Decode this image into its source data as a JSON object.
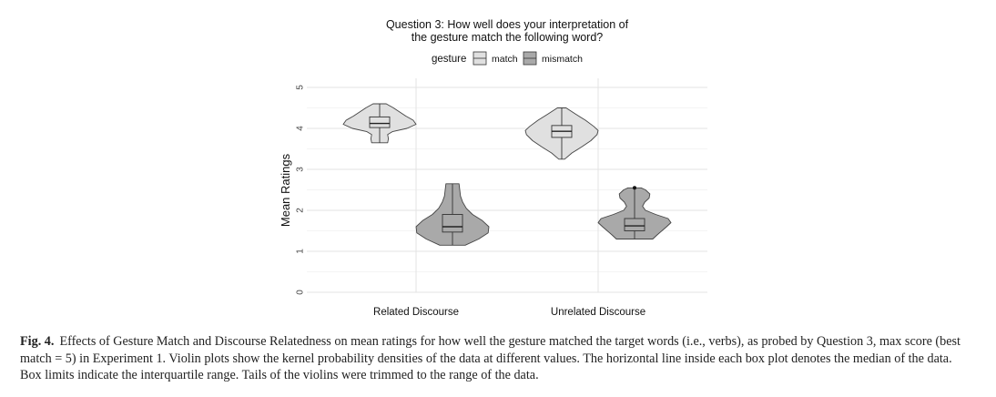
{
  "chart_data": {
    "type": "violin",
    "title_lines": [
      "Question 3: How well does your interpretation of",
      "the gesture match the following word?"
    ],
    "legend": {
      "title": "gesture",
      "position": "top",
      "entries": [
        {
          "label": "match",
          "color": "#e0e0e0"
        },
        {
          "label": "mismatch",
          "color": "#a9a9a9"
        }
      ]
    },
    "xlabel": "",
    "ylabel": "Mean Ratings",
    "categories": [
      "Related Discourse",
      "Unrelated Discourse"
    ],
    "ylim": [
      0,
      5
    ],
    "yticks": [
      "0",
      "1",
      "2",
      "3",
      "4",
      "5"
    ],
    "grid": true,
    "series": [
      {
        "name": "match",
        "color": "#e0e0e0",
        "groups": [
          {
            "category": "Related Discourse",
            "min": 3.65,
            "q1": 4.02,
            "median": 4.12,
            "q3": 4.28,
            "max": 4.6,
            "density": [
              [
                3.65,
                0.22
              ],
              [
                3.75,
                0.24
              ],
              [
                3.85,
                0.22
              ],
              [
                3.92,
                0.35
              ],
              [
                4.0,
                0.75
              ],
              [
                4.1,
                1.0
              ],
              [
                4.2,
                0.92
              ],
              [
                4.3,
                0.72
              ],
              [
                4.4,
                0.55
              ],
              [
                4.5,
                0.38
              ],
              [
                4.6,
                0.18
              ]
            ]
          },
          {
            "category": "Unrelated Discourse",
            "min": 3.25,
            "q1": 3.78,
            "median": 3.93,
            "q3": 4.07,
            "max": 4.5,
            "density": [
              [
                3.25,
                0.08
              ],
              [
                3.4,
                0.28
              ],
              [
                3.55,
                0.55
              ],
              [
                3.7,
                0.8
              ],
              [
                3.85,
                0.97
              ],
              [
                3.95,
                1.0
              ],
              [
                4.05,
                0.88
              ],
              [
                4.2,
                0.65
              ],
              [
                4.35,
                0.38
              ],
              [
                4.5,
                0.12
              ]
            ]
          }
        ]
      },
      {
        "name": "mismatch",
        "color": "#a9a9a9",
        "groups": [
          {
            "category": "Related Discourse",
            "min": 1.15,
            "q1": 1.47,
            "median": 1.6,
            "q3": 1.9,
            "max": 2.65,
            "density": [
              [
                1.15,
                0.35
              ],
              [
                1.3,
                0.72
              ],
              [
                1.45,
                0.98
              ],
              [
                1.6,
                1.0
              ],
              [
                1.75,
                0.82
              ],
              [
                1.9,
                0.55
              ],
              [
                2.05,
                0.38
              ],
              [
                2.2,
                0.28
              ],
              [
                2.35,
                0.22
              ],
              [
                2.5,
                0.2
              ],
              [
                2.65,
                0.18
              ]
            ]
          },
          {
            "category": "Unrelated Discourse",
            "min": 1.3,
            "q1": 1.5,
            "median": 1.62,
            "q3": 1.8,
            "max": 2.55,
            "outlier": 2.55,
            "density": [
              [
                1.3,
                0.5
              ],
              [
                1.4,
                0.62
              ],
              [
                1.5,
                0.75
              ],
              [
                1.6,
                0.88
              ],
              [
                1.7,
                1.0
              ],
              [
                1.8,
                0.92
              ],
              [
                1.9,
                0.58
              ],
              [
                2.0,
                0.3
              ],
              [
                2.1,
                0.22
              ],
              [
                2.2,
                0.28
              ],
              [
                2.3,
                0.4
              ],
              [
                2.4,
                0.42
              ],
              [
                2.5,
                0.3
              ],
              [
                2.55,
                0.18
              ]
            ]
          }
        ]
      }
    ]
  },
  "caption": {
    "label": "Fig. 4.",
    "text": "Effects of Gesture Match and Discourse Relatedness on mean ratings for how well the gesture matched the target words (i.e., verbs), as probed by Question 3, max score (best match = 5) in Experiment 1. Violin plots show the kernel probability densities of the data at different values. The horizontal line inside each box plot denotes the median of the data. Box limits indicate the interquartile range. Tails of the violins were trimmed to the range of the data."
  }
}
